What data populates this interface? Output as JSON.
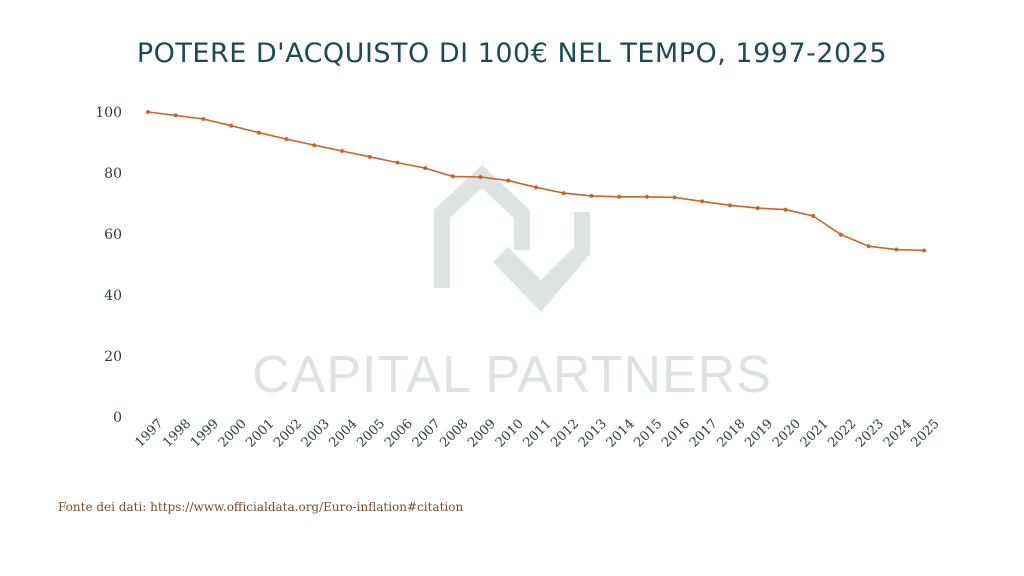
{
  "title": "POTERE D'ACQUISTO DI 100€ NEL TEMPO, 1997-2025",
  "watermark": {
    "brand": "CAPITAL PARTNERS"
  },
  "source": "Fonte dei dati: https://www.officialdata.org/Euro-inflation#citation",
  "colors": {
    "line": "#c8652a",
    "title": "#1e4a52",
    "watermark": "#dde3e3"
  },
  "chart_data": {
    "type": "line",
    "title": "POTERE D'ACQUISTO DI 100€ NEL TEMPO, 1997-2025",
    "xlabel": "",
    "ylabel": "",
    "ylim": [
      0,
      100
    ],
    "yticks": [
      0,
      20,
      40,
      60,
      80,
      100
    ],
    "grid": false,
    "categories": [
      "1997",
      "1998",
      "1999",
      "2000",
      "2001",
      "2002",
      "2003",
      "2004",
      "2005",
      "2006",
      "2007",
      "2008",
      "2009",
      "2010",
      "2011",
      "2012",
      "2013",
      "2014",
      "2015",
      "2016",
      "2017",
      "2018",
      "2019",
      "2020",
      "2021",
      "2022",
      "2023",
      "2024",
      "2025"
    ],
    "values": [
      100.0,
      98.9,
      97.7,
      95.5,
      93.2,
      91.1,
      89.1,
      87.2,
      85.3,
      83.4,
      81.6,
      78.9,
      78.7,
      77.5,
      75.3,
      73.4,
      72.5,
      72.2,
      72.2,
      72.0,
      70.7,
      69.4,
      68.5,
      68.0,
      65.9,
      59.8,
      56.0,
      54.9,
      54.6
    ]
  }
}
